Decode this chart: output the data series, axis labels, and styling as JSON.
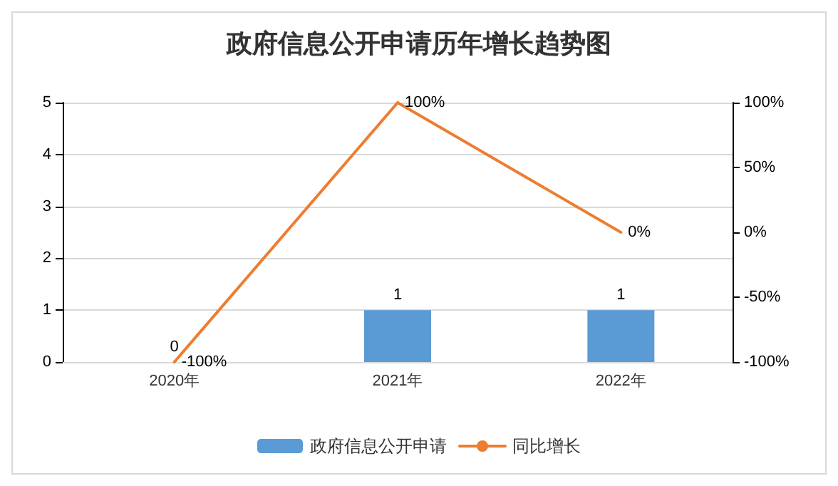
{
  "chart_data": {
    "type": "bar",
    "title": "政府信息公开申请历年增长趋势图",
    "categories": [
      "2020年",
      "2021年",
      "2022年"
    ],
    "series": [
      {
        "name": "政府信息公开申请",
        "color": "#5b9bd5",
        "values": [
          0,
          1,
          1
        ],
        "value_labels": [
          "0",
          "1",
          "1"
        ]
      },
      {
        "name": "同比增长",
        "type": "line",
        "axis": "y2",
        "color": "#ed7d31",
        "values": [
          -100,
          100,
          0
        ],
        "value_labels": [
          "-100%",
          "100%",
          "0%"
        ]
      }
    ],
    "ylim": [
      0,
      5
    ],
    "yticks": [
      0,
      1,
      2,
      3,
      4,
      5
    ],
    "y2lim": [
      -100,
      100
    ],
    "y2ticks": [
      {
        "value": -100,
        "label": "-100%"
      },
      {
        "value": -50,
        "label": "-50%"
      },
      {
        "value": 0,
        "label": "0%"
      },
      {
        "value": 50,
        "label": "50%"
      },
      {
        "value": 100,
        "label": "100%"
      }
    ],
    "grid": "y",
    "legend": "bottom",
    "marker": "none",
    "line_style": "solid"
  }
}
